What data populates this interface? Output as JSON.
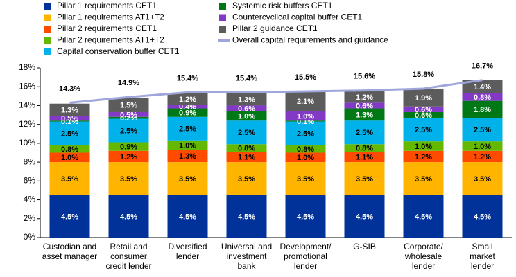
{
  "chart_data": {
    "type": "stacked-bar",
    "categories": [
      [
        "Custodian and",
        "asset manager"
      ],
      [
        "Retail and",
        "consumer",
        "credit lender"
      ],
      [
        "Diversified",
        "lender"
      ],
      [
        "Universal and",
        "investment",
        "bank"
      ],
      [
        "Development/",
        "promotional",
        "lender"
      ],
      [
        "G-SIB"
      ],
      [
        "Corporate/",
        "wholesale",
        "lender"
      ],
      [
        "Small",
        "market",
        "lender"
      ]
    ],
    "series": [
      {
        "name": "Pillar 1 requirements CET1",
        "color": "#003299",
        "label_color": "#ffffff",
        "values": [
          4.5,
          4.5,
          4.5,
          4.5,
          4.5,
          4.5,
          4.5,
          4.5
        ],
        "value_labels": [
          "4.5%",
          "4.5%",
          "4.5%",
          "4.5%",
          "4.5%",
          "4.5%",
          "4.5%",
          "4.5%"
        ]
      },
      {
        "name": "Pillar 1 requirements AT1+T2",
        "color": "#ffb400",
        "label_color": "#000000",
        "values": [
          3.5,
          3.5,
          3.5,
          3.5,
          3.5,
          3.5,
          3.5,
          3.5
        ],
        "value_labels": [
          "3.5%",
          "3.5%",
          "3.5%",
          "3.5%",
          "3.5%",
          "3.5%",
          "3.5%",
          "3.5%"
        ]
      },
      {
        "name": "Pillar 2 requirements CET1",
        "color": "#ff4b00",
        "label_color": "#000000",
        "values": [
          1.0,
          1.2,
          1.3,
          1.1,
          1.0,
          1.1,
          1.2,
          1.2
        ],
        "value_labels": [
          "1.0%",
          "1.2%",
          "1.3%",
          "1.1%",
          "1.0%",
          "1.1%",
          "1.2%",
          "1.2%"
        ]
      },
      {
        "name": "Pillar 2 requirements AT1+T2",
        "color": "#65b800",
        "label_color": "#000000",
        "values": [
          0.8,
          0.9,
          1.0,
          0.8,
          0.8,
          0.8,
          1.0,
          1.0
        ],
        "value_labels": [
          "0.8%",
          "0.9%",
          "1.0%",
          "0.8%",
          "0.8%",
          "0.8%",
          "1.0%",
          "1.0%"
        ]
      },
      {
        "name": "Capital conservation buffer CET1",
        "color": "#00b1ea",
        "label_color": "#000000",
        "values": [
          2.5,
          2.5,
          2.5,
          2.5,
          2.5,
          2.5,
          2.5,
          2.5
        ],
        "value_labels": [
          "2.5%",
          "2.5%",
          "2.5%",
          "2.5%",
          "2.5%",
          "2.5%",
          "2.5%",
          "2.5%"
        ]
      },
      {
        "name": "Systemic risk buffers CET1",
        "color": "#007816",
        "label_color": "#ffffff",
        "values": [
          0.1,
          0.2,
          0.9,
          1.0,
          0.1,
          1.3,
          0.6,
          1.8
        ],
        "value_labels": [
          "0.1%",
          "0.2%",
          "0.9%",
          "1.0%",
          "0.1%",
          "1.3%",
          "0.6%",
          "1.8%"
        ]
      },
      {
        "name": "Countercyclical capital buffer CET1",
        "color": "#8139c6",
        "label_color": "#ffffff",
        "values": [
          0.5,
          0.5,
          0.4,
          0.6,
          1.0,
          0.6,
          0.6,
          0.8
        ],
        "value_labels": [
          "0.5%",
          "0.5%",
          "0.4%",
          "0.6%",
          "1.0%",
          "0.6%",
          "0.6%",
          "0.8%"
        ]
      },
      {
        "name": "Pillar 2 guidance CET1",
        "color": "#5c5c5c",
        "label_color": "#ffffff",
        "values": [
          1.3,
          1.5,
          1.2,
          1.3,
          2.1,
          1.2,
          1.9,
          1.4
        ],
        "value_labels": [
          "1.3%",
          "1.5%",
          "1.2%",
          "1.3%",
          "2.1%",
          "1.2%",
          "1.9%",
          "1.4%"
        ]
      }
    ],
    "line": {
      "name": "Overall capital requirements and guidance",
      "color": "#9ea6dc",
      "values": [
        14.3,
        14.9,
        15.4,
        15.4,
        15.5,
        15.6,
        15.8,
        16.7
      ],
      "value_labels": [
        "14.3%",
        "14.9%",
        "15.4%",
        "15.4%",
        "15.5%",
        "15.6%",
        "15.8%",
        "16.7%"
      ]
    },
    "legend_names": [
      "Pillar 1 requirements CET1",
      "Pillar 1 requirements AT1+T2",
      "Pillar 2 requirements CET1",
      "Pillar 2 requirements AT1+T2",
      "Capital conservation buffer CET1",
      "Systemic risk buffers CET1",
      "Countercyclical capital buffer CET1",
      "Pillar 2 guidance CET1"
    ],
    "ylim": [
      0,
      18
    ],
    "yticks": [
      {
        "value": 0,
        "label": "0%"
      },
      {
        "value": 2,
        "label": "2%"
      },
      {
        "value": 4,
        "label": "4%"
      },
      {
        "value": 6,
        "label": "6%"
      },
      {
        "value": 8,
        "label": "8%"
      },
      {
        "value": 10,
        "label": "10%"
      },
      {
        "value": 12,
        "label": "12%"
      },
      {
        "value": 14,
        "label": "14%"
      },
      {
        "value": 16,
        "label": "16%"
      },
      {
        "value": 18,
        "label": "18%"
      }
    ],
    "grid": false
  }
}
